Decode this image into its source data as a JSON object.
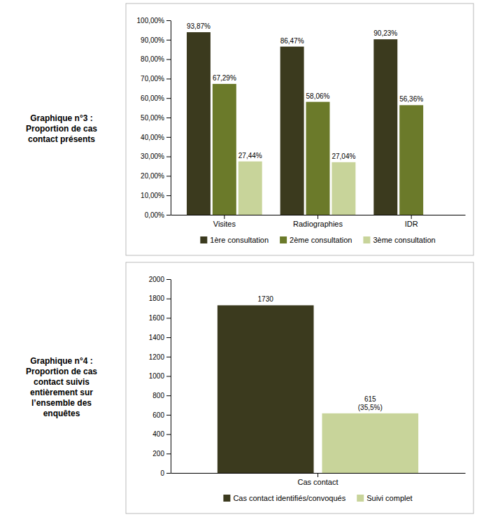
{
  "chart_data": [
    {
      "type": "bar",
      "title": "Graphique n°3 :\nProportion de cas\ncontact présents",
      "categories": [
        "Visites",
        "Radiographies",
        "IDR"
      ],
      "series": [
        {
          "name": "1ère consultation",
          "color": "#3b3a1e",
          "values": [
            93.87,
            86.47,
            90.23
          ],
          "value_labels": [
            "93,87%",
            "86,47%",
            "90,23%"
          ]
        },
        {
          "name": "2ème consultation",
          "color": "#6b7a2a",
          "values": [
            67.29,
            58.06,
            56.36
          ],
          "value_labels": [
            "67,29%",
            "58,06%",
            "56,36%"
          ]
        },
        {
          "name": "3ème consultation",
          "color": "#c8d49a",
          "values": [
            27.44,
            27.04,
            null
          ],
          "value_labels": [
            "27,44%",
            "27,04%",
            null
          ]
        }
      ],
      "ylim": [
        0,
        100
      ],
      "yticks": [
        {
          "value": 0,
          "label": "0,00%"
        },
        {
          "value": 10,
          "label": "10,00%"
        },
        {
          "value": 20,
          "label": "20,00%"
        },
        {
          "value": 30,
          "label": "30,00%"
        },
        {
          "value": 40,
          "label": "40,00%"
        },
        {
          "value": 50,
          "label": "50,00%"
        },
        {
          "value": 60,
          "label": "60,00%"
        },
        {
          "value": 70,
          "label": "70,00%"
        },
        {
          "value": 80,
          "label": "80,00%"
        },
        {
          "value": 90,
          "label": "90,00%"
        },
        {
          "value": 100,
          "label": "100,00%"
        }
      ],
      "data_labels": true,
      "grid": false,
      "legend": "bottom"
    },
    {
      "type": "bar",
      "title": "Graphique n°4 :\nProportion de cas\ncontact suivis\nentièrement sur\nl’ensemble des\nenquêtes",
      "categories": [
        "Cas contact"
      ],
      "series": [
        {
          "name": "Cas contact identifiés/convoqués",
          "color": "#3b3a1e",
          "values": [
            1730
          ]
        },
        {
          "name": "Suivi complet",
          "color": "#c8d49a",
          "values": [
            615
          ],
          "value_labels": [
            "615\n(35,5%)"
          ]
        }
      ],
      "ylim": [
        0,
        2000
      ],
      "yticks": [
        0,
        200,
        400,
        600,
        800,
        1000,
        1200,
        1400,
        1600,
        1800,
        2000
      ],
      "data_labels": true,
      "grid": false,
      "legend": "bottom"
    }
  ]
}
